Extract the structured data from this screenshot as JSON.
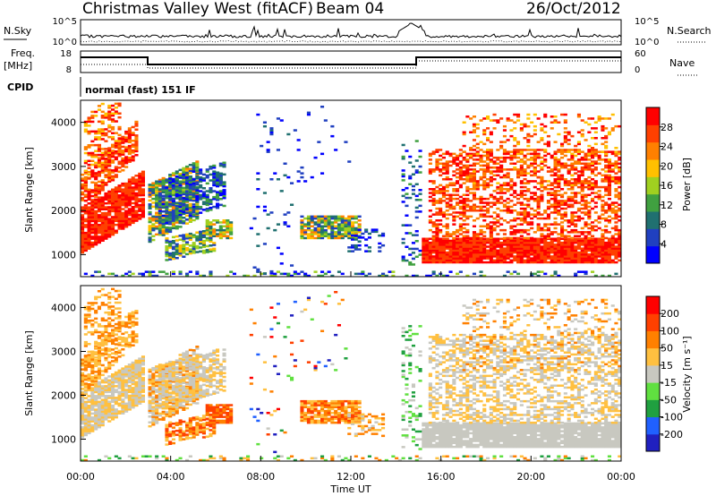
{
  "header": {
    "title": "Christmas Valley West (fitACF)",
    "beam": "Beam 04",
    "date": "26/Oct/2012"
  },
  "top_panels": {
    "nsky_label": "N.Sky",
    "nsky_ticks": [
      "10^5",
      "10^0"
    ],
    "nsearch_label": "N.Search",
    "freq_label": "Freq.",
    "freq_unit": "[MHz]",
    "freq_ticks": [
      "18",
      "8"
    ],
    "nave_label": "Nave",
    "nave_ticks": [
      "60",
      "0"
    ],
    "cpid_label": "CPID",
    "cpid_text": "normal (fast) 151 IF"
  },
  "colors": {
    "power": [
      "#0000ff",
      "#2040c0",
      "#207070",
      "#40a040",
      "#a0d020",
      "#ffc000",
      "#ff8000",
      "#ff4000",
      "#ff0000"
    ],
    "velocity": [
      "#2020c0",
      "#2060ff",
      "#20a040",
      "#60e040",
      "#c8c8c0",
      "#ffc040",
      "#ff8000",
      "#ff4000",
      "#ff0000"
    ]
  },
  "chart_data": [
    {
      "type": "heatmap",
      "name": "Power",
      "ylabel": "Slant Range [km]",
      "yticks": [
        "1000",
        "2000",
        "3000",
        "4000"
      ],
      "ylim": [
        500,
        4500
      ],
      "colorbar_label": "Power [dB]",
      "colorbar_ticks": [
        "4",
        "8",
        "12",
        "16",
        "20",
        "24",
        "28"
      ],
      "colorbar_range": [
        0,
        32
      ]
    },
    {
      "type": "heatmap",
      "name": "Velocity",
      "ylabel": "Slant Range [km]",
      "yticks": [
        "1000",
        "2000",
        "3000",
        "4000"
      ],
      "ylim": [
        500,
        4500
      ],
      "colorbar_label": "Velocity [m s⁻¹]",
      "colorbar_ticks": [
        "200",
        "100",
        "50",
        "15",
        "-15",
        "-50",
        "-100",
        "-200"
      ]
    }
  ],
  "xaxis": {
    "label": "Time UT",
    "ticks": [
      "00:00",
      "04:00",
      "08:00",
      "12:00",
      "16:00",
      "20:00",
      "00:00"
    ]
  }
}
